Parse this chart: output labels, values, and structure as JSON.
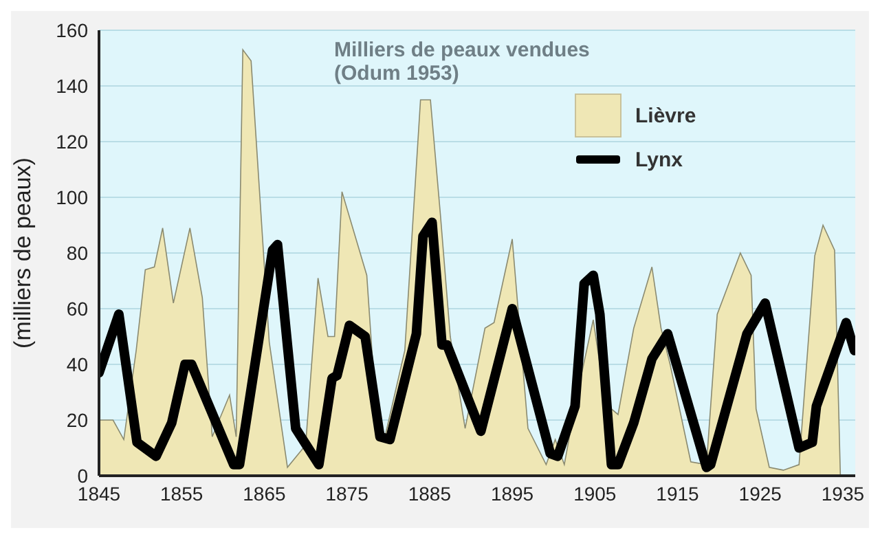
{
  "chart_data": {
    "type": "area",
    "title": "Milliers de peaux vendues",
    "annotations": [
      "(Odum 1953)"
    ],
    "ylabel": "(milliers de peaux)",
    "xlim": [
      1845,
      1936.5
    ],
    "xticks": [
      1845,
      1855,
      1865,
      1875,
      1885,
      1895,
      1905,
      1915,
      1925,
      1935
    ],
    "ylim": [
      0,
      160
    ],
    "yticks": [
      0,
      20,
      40,
      60,
      80,
      100,
      120,
      140,
      160
    ],
    "grid": "y",
    "legend": "top right",
    "series": [
      {
        "name": "Lièvre",
        "color": "#efe7b5",
        "x": [
          1845,
          1846.7,
          1848,
          1849.5,
          1850.6,
          1851.7,
          1852.7,
          1854,
          1856,
          1857.5,
          1858.7,
          1860.8,
          1861.6,
          1862.4,
          1863.4,
          1865.6,
          1867.8,
          1870,
          1871.5,
          1872.7,
          1873.5,
          1874.4,
          1877.4,
          1878.5,
          1879.6,
          1882,
          1883.9,
          1885.1,
          1886.3,
          1887.5,
          1889.3,
          1891.7,
          1892.8,
          1895,
          1896.9,
          1899.1,
          1900.2,
          1901.3,
          1902.9,
          1904.8,
          1905.6,
          1907,
          1907.8,
          1909.7,
          1911.9,
          1913,
          1914.1,
          1916.6,
          1918.5,
          1919.8,
          1922.6,
          1923.9,
          1924.5,
          1926.1,
          1927.8,
          1929.7,
          1931.6,
          1932.6,
          1934,
          1934.7
        ],
        "values": [
          20,
          20,
          13,
          45,
          74,
          75,
          89,
          62,
          89,
          64,
          14,
          29,
          14,
          153,
          149,
          48,
          3,
          11,
          71,
          50,
          50,
          102,
          72,
          24,
          14,
          45,
          135,
          135,
          94,
          50,
          17,
          53,
          55,
          85,
          17,
          4,
          13,
          4,
          30,
          56,
          40,
          24,
          22,
          53,
          75,
          53,
          40,
          5,
          4,
          58,
          80,
          72,
          24,
          3,
          2,
          4,
          79,
          90,
          81,
          0
        ]
      },
      {
        "name": "Lynx",
        "type": "line",
        "color": "#000000",
        "x": [
          1845,
          1847.4,
          1849.6,
          1851.9,
          1853.8,
          1855.4,
          1856.2,
          1861.3,
          1862,
          1866,
          1866.6,
          1868.8,
          1871.6,
          1873.2,
          1873.8,
          1875.3,
          1877.2,
          1879,
          1880.2,
          1883.4,
          1884.2,
          1885.3,
          1886.5,
          1887.1,
          1891.2,
          1895,
          1899.6,
          1900.5,
          1902.6,
          1903.7,
          1904.8,
          1905.6,
          1907,
          1907.8,
          1909.7,
          1911.9,
          1913.8,
          1918.5,
          1919,
          1923.4,
          1925.6,
          1929.7,
          1931.3,
          1931.8,
          1935.4,
          1936.4
        ],
        "values": [
          37,
          58,
          12,
          7,
          19,
          40,
          40,
          4,
          4,
          81,
          83,
          17,
          4,
          35,
          36,
          54,
          50,
          14,
          13,
          51,
          86,
          91,
          47,
          47,
          16,
          60,
          8,
          7,
          25,
          69,
          72,
          58,
          4,
          4,
          19,
          42,
          51,
          3,
          4,
          51,
          62,
          10,
          12,
          25,
          55,
          45
        ]
      }
    ]
  }
}
